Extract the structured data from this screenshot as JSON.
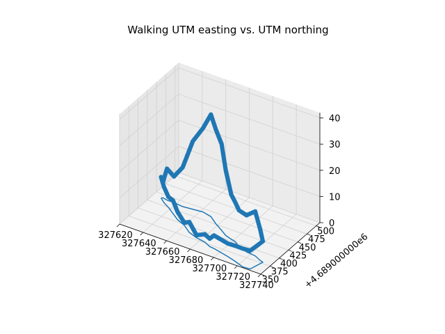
{
  "chart_data": {
    "type": "line",
    "subtype": "3d-line-with-markers",
    "title": "Walking UTM easting vs. UTM northing",
    "xlabel": "",
    "ylabel": "",
    "zlabel": "",
    "x_ticks": [
      "327620",
      "327640",
      "327660",
      "327680",
      "327700",
      "327720",
      "327740"
    ],
    "y_ticks": [
      "350",
      "375",
      "400",
      "425",
      "450",
      "475",
      "500"
    ],
    "y_offset_label": "+4.689000000e6",
    "z_ticks": [
      "0",
      "10",
      "20",
      "30",
      "40"
    ],
    "xlim": [
      327620,
      327740
    ],
    "ylim": [
      4689350,
      4689510
    ],
    "zlim": [
      0,
      42
    ],
    "grid": true,
    "color": "#1f77b4",
    "series": [
      {
        "style": "markers-on-line",
        "x": [
          327627,
          327632,
          327638,
          327645,
          327652,
          327660,
          327668,
          327676,
          327684,
          327690,
          327694,
          327700,
          327708,
          327716,
          327724,
          327730,
          327733,
          327730,
          327724,
          327716,
          327708,
          327702,
          327698,
          327692,
          327686,
          327678,
          327670,
          327662,
          327654,
          327646,
          327638,
          327632,
          327628,
          327627
        ],
        "y": [
          4689440,
          4689432,
          4689425,
          4689415,
          4689405,
          4689398,
          4689386,
          4689380,
          4689377,
          4689371,
          4689370,
          4689367,
          4689363,
          4689358,
          4689352,
          4689353,
          4689378,
          4689380,
          4689386,
          4689388,
          4689393,
          4689402,
          4689404,
          4689408,
          4689416,
          4689426,
          4689438,
          4689442,
          4689440,
          4689438,
          4689440,
          4689440,
          4689442,
          4689440
        ],
        "z": [
          8,
          6,
          4,
          5,
          3,
          1,
          4,
          1,
          3,
          3,
          5,
          5,
          5,
          6,
          7,
          7,
          8,
          12,
          17,
          14,
          14,
          15,
          17,
          25,
          33,
          36,
          39,
          32,
          26,
          15,
          10,
          12,
          6,
          8
        ]
      },
      {
        "style": "line",
        "x": [
          327627,
          327632,
          327638,
          327645,
          327652,
          327660,
          327668,
          327676,
          327684,
          327690,
          327694,
          327700,
          327708,
          327716,
          327724,
          327730,
          327733,
          327730,
          327724,
          327716,
          327708,
          327702,
          327698,
          327692,
          327686,
          327678,
          327670,
          327662,
          327654,
          327646,
          327638,
          327632,
          327628,
          327627
        ],
        "y": [
          4689440,
          4689432,
          4689425,
          4689415,
          4689405,
          4689398,
          4689386,
          4689380,
          4689377,
          4689371,
          4689370,
          4689367,
          4689363,
          4689358,
          4689352,
          4689353,
          4689378,
          4689380,
          4689386,
          4689388,
          4689393,
          4689402,
          4689404,
          4689408,
          4689416,
          4689426,
          4689438,
          4689442,
          4689440,
          4689438,
          4689440,
          4689440,
          4689442,
          4689440
        ],
        "z": [
          0,
          0,
          0,
          0,
          0,
          0,
          0,
          0,
          0,
          0,
          0,
          0,
          0,
          0,
          0,
          0,
          0,
          0,
          0,
          0,
          0,
          0,
          0,
          0,
          0,
          0,
          0,
          0,
          0,
          0,
          0,
          0,
          0,
          0
        ]
      }
    ]
  }
}
